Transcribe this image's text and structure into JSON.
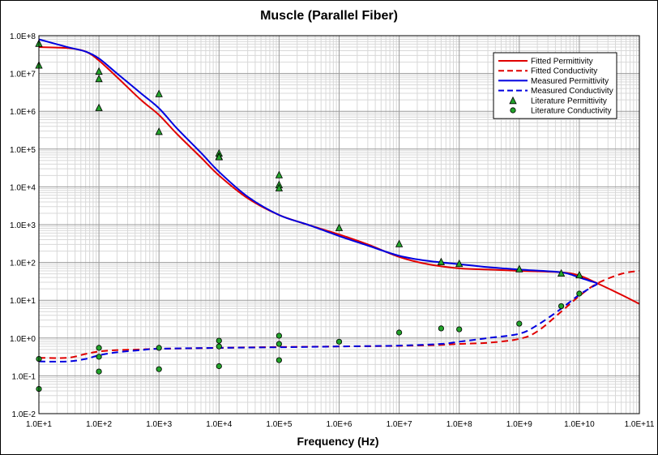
{
  "chart_data": {
    "type": "line",
    "title": "Muscle (Parallel Fiber)",
    "xlabel": "Frequency (Hz)",
    "ylabel": "",
    "xscale": "log",
    "yscale": "log",
    "xlim": [
      10,
      100000000000
    ],
    "ylim": [
      0.01,
      100000000
    ],
    "grid": true,
    "legend_position": "top-right",
    "x_tick_labels": [
      "1.0E+1",
      "1.0E+2",
      "1.0E+3",
      "1.0E+4",
      "1.0E+5",
      "1.0E+6",
      "1.0E+7",
      "1.0E+8",
      "1.0E+9",
      "1.0E+10",
      "1.0E+11"
    ],
    "y_tick_labels": [
      "1.0E-2",
      "1.0E-1",
      "1.0E+0",
      "1.0E+1",
      "1.0E+2",
      "1.0E+3",
      "1.0E+4",
      "1.0E+5",
      "1.0E+6",
      "1.0E+7",
      "1.0E+8"
    ],
    "colors": {
      "fitted": "#e00000",
      "measured": "#0000e0",
      "marker": "#22a32a"
    },
    "series": [
      {
        "name": "Fitted Permittivity",
        "style": "solid-red",
        "x": [
          10,
          30,
          60,
          100,
          200,
          500,
          1000,
          2000,
          5000,
          10000,
          30000,
          100000,
          300000,
          1000000,
          3000000,
          10000000,
          30000000,
          100000000,
          300000000,
          1000000000,
          5000000000,
          10000000000,
          20000000000,
          50000000000,
          100000000000
        ],
        "values": [
          50000000,
          47000000,
          38000000,
          22000000,
          8000000,
          2000000,
          800000,
          250000,
          60000,
          20000,
          5000,
          1800,
          1000,
          550,
          300,
          140,
          90,
          70,
          65,
          60,
          55,
          45,
          28,
          14,
          8
        ]
      },
      {
        "name": "Fitted Conductivity",
        "style": "dashed-red",
        "x": [
          10,
          30,
          60,
          100,
          200,
          500,
          1000,
          10000,
          100000,
          1000000,
          10000000,
          50000000,
          100000000,
          300000000,
          1000000000,
          2000000000,
          5000000000,
          10000000000,
          20000000000,
          50000000000,
          100000000000
        ],
        "values": [
          0.3,
          0.3,
          0.38,
          0.44,
          0.48,
          0.5,
          0.52,
          0.55,
          0.58,
          0.6,
          0.62,
          0.66,
          0.7,
          0.75,
          0.95,
          1.5,
          5,
          13,
          28,
          50,
          60
        ]
      },
      {
        "name": "Measured Permittivity",
        "style": "solid-blue",
        "x": [
          10,
          30,
          60,
          100,
          200,
          500,
          1000,
          2000,
          5000,
          10000,
          30000,
          100000,
          300000,
          1000000,
          3000000,
          10000000,
          30000000,
          100000000,
          300000000,
          1000000000,
          5000000000,
          10000000000,
          20000000000
        ],
        "values": [
          80000000,
          50000000,
          38000000,
          25000000,
          10000000,
          3000000,
          1200000,
          350000,
          80000,
          25000,
          5500,
          1800,
          1000,
          500,
          280,
          150,
          110,
          90,
          75,
          65,
          55,
          40,
          28
        ]
      },
      {
        "name": "Measured Conductivity",
        "style": "dashed-blue",
        "x": [
          10,
          30,
          60,
          100,
          200,
          500,
          1000,
          10000,
          100000,
          1000000,
          10000000,
          50000000,
          100000000,
          300000000,
          1000000000,
          2000000000,
          5000000000,
          10000000000,
          20000000000
        ],
        "values": [
          0.24,
          0.24,
          0.28,
          0.35,
          0.42,
          0.48,
          0.52,
          0.55,
          0.57,
          0.6,
          0.63,
          0.7,
          0.8,
          1.0,
          1.3,
          2.2,
          6,
          14,
          27
        ]
      },
      {
        "name": "Literature Permittivity",
        "style": "triangle-marker",
        "x": [
          10,
          10,
          100,
          100,
          100,
          1000,
          1000,
          10000,
          10000,
          10000,
          100000,
          100000,
          100000,
          1000000,
          10000000,
          50000000,
          100000000,
          1000000000,
          5000000000,
          10000000000
        ],
        "values": [
          60000000,
          16000000,
          11000000,
          7000000,
          1200000,
          2800000,
          280000,
          75000,
          62000,
          60000,
          20000,
          11000,
          9000,
          800,
          300,
          100,
          90,
          65,
          50,
          45
        ]
      },
      {
        "name": "Literature Conductivity",
        "style": "circle-marker",
        "x": [
          10,
          10,
          100,
          100,
          100,
          1000,
          1000,
          10000,
          10000,
          10000,
          100000,
          100000,
          100000,
          1000000,
          10000000,
          50000000,
          100000000,
          1000000000,
          5000000000,
          10000000000
        ],
        "values": [
          0.28,
          0.045,
          0.55,
          0.32,
          0.13,
          0.55,
          0.15,
          0.85,
          0.6,
          0.18,
          1.15,
          0.7,
          0.26,
          0.8,
          1.4,
          1.8,
          1.7,
          2.4,
          7,
          15
        ]
      }
    ]
  }
}
